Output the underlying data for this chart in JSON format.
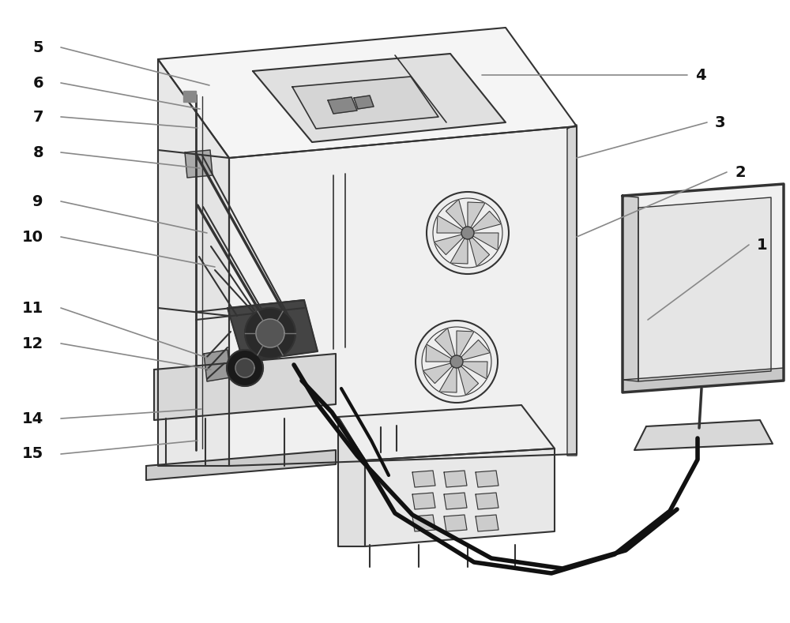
{
  "figure_width": 10.0,
  "figure_height": 7.89,
  "dpi": 100,
  "bg_color": "#ffffff",
  "line_color": "#555555",
  "dark_line_color": "#333333",
  "label_color": "#111111",
  "label_fontsize": 14,
  "label_fontweight": "bold",
  "callout_line_color": "#888888",
  "callout_lw": 1.2,
  "cable_color": "#111111",
  "cable_lw": 4.0,
  "fan_face": "#eeeeee",
  "fan_blade": "#cccccc",
  "fan_hub": "#888888",
  "motor_dark": "#333333",
  "motor_mid": "#555555",
  "plat_fill": "#d8d8d8",
  "base_fill": "#cccccc",
  "top_fill": "#f5f5f5",
  "front_fill": "#e8e8e8",
  "right_fill": "#f0f0f0",
  "inner_fill": "#e0e0e0",
  "panel_fill": "#d5d5d5",
  "lower_top_fill": "#eeeeee",
  "lower_front_fill": "#e0e0e0",
  "lower_right_fill": "#e8e8e8",
  "btn_fill": "#cccccc",
  "monitor_fill": "#f0f0f0",
  "monitor_inner_fill": "#e5e5e5",
  "monitor_side_fill": "#d0d0d0",
  "monitor_base_fill": "#d8d8d8"
}
